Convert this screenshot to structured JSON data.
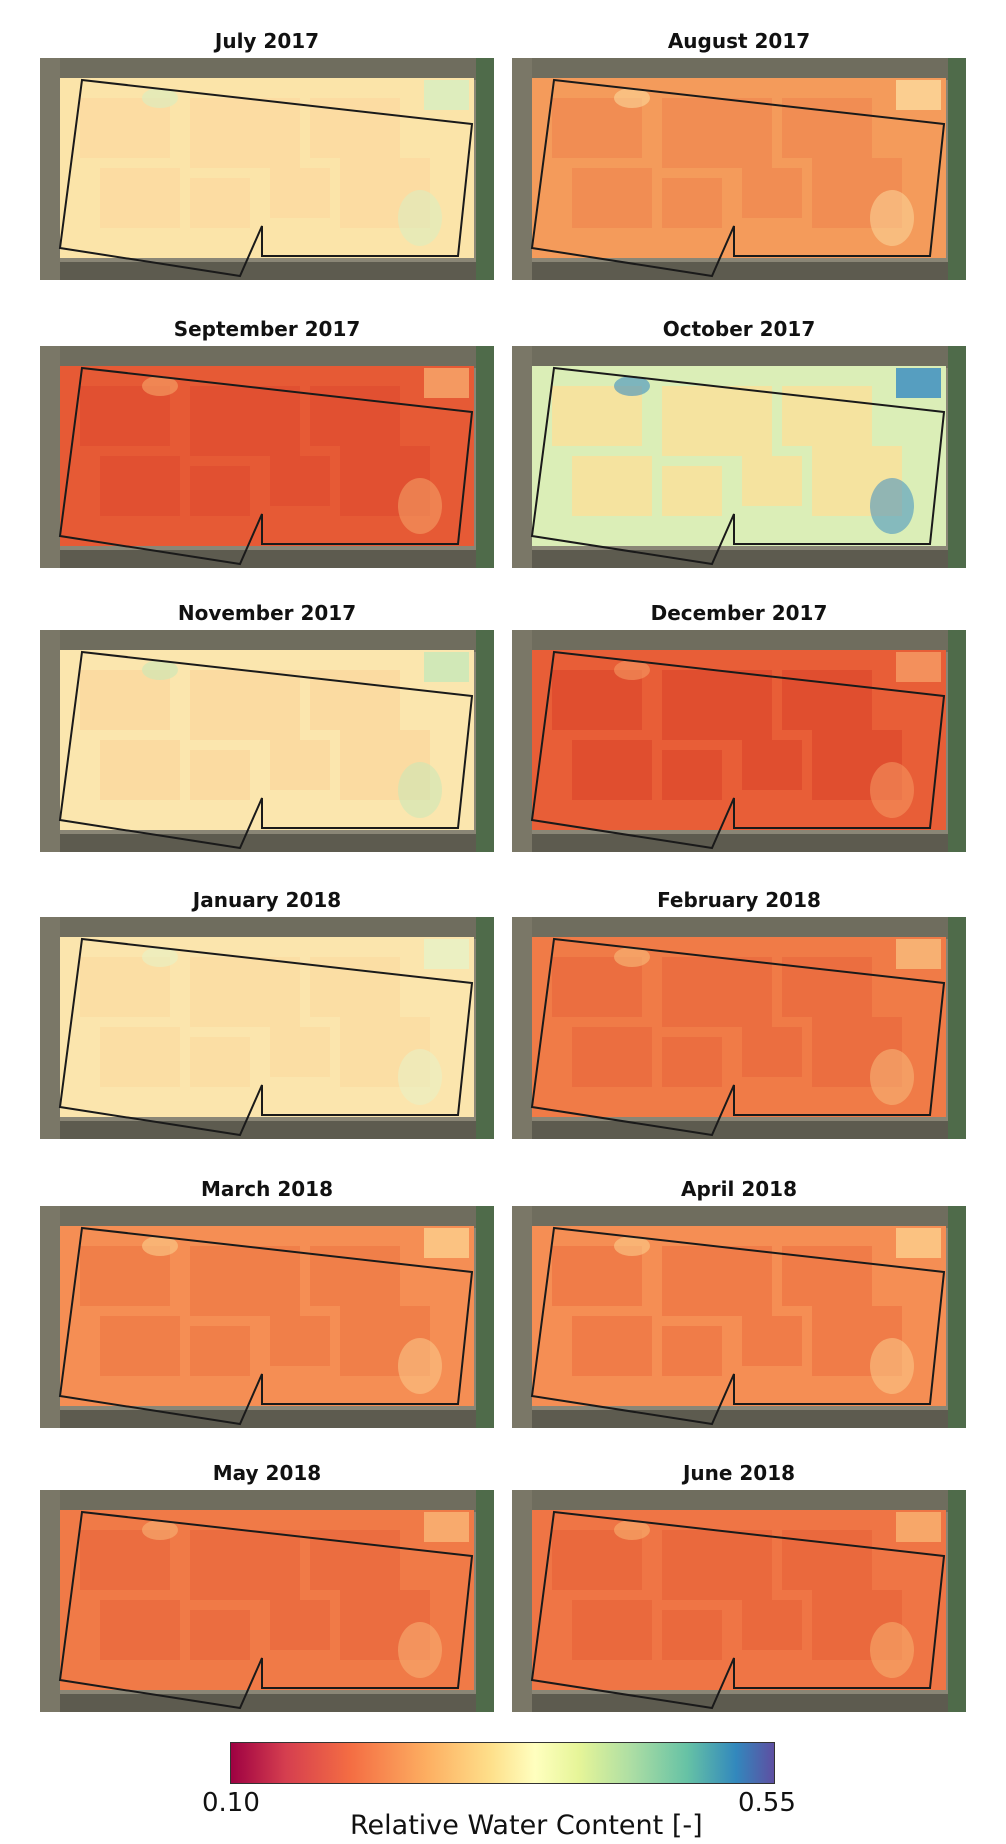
{
  "panels": [
    {
      "title": "July 2017",
      "base": "#fbe4a9",
      "variation": "#fcd9a0",
      "accent": "#d8eec1"
    },
    {
      "title": "August 2017",
      "base": "#f49b5b",
      "variation": "#f08850",
      "accent": "#fcd79a"
    },
    {
      "title": "September 2017",
      "base": "#e65a35",
      "variation": "#df4e30",
      "accent": "#f6a468"
    },
    {
      "title": "October 2017",
      "base": "#dbeeb7",
      "variation": "#fddf97",
      "accent": "#3e8fc2"
    },
    {
      "title": "November 2017",
      "base": "#fbe6ae",
      "variation": "#fbd79c",
      "accent": "#c9e8b8"
    },
    {
      "title": "December 2017",
      "base": "#e85e37",
      "variation": "#dd4a2d",
      "accent": "#f59963"
    },
    {
      "title": "January 2018",
      "base": "#fbe5ad",
      "variation": "#fbdba2",
      "accent": "#e8f2c6"
    },
    {
      "title": "February 2018",
      "base": "#f07b47",
      "variation": "#ea6a3d",
      "accent": "#f8ba7a"
    },
    {
      "title": "March 2018",
      "base": "#f58e54",
      "variation": "#ee7a45",
      "accent": "#fbcb8a"
    },
    {
      "title": "April 2018",
      "base": "#f58e54",
      "variation": "#ed7644",
      "accent": "#fbcb8a"
    },
    {
      "title": "May 2018",
      "base": "#f07a47",
      "variation": "#ea6a3e",
      "accent": "#f9b374"
    },
    {
      "title": "June 2018",
      "base": "#ef7545",
      "variation": "#e8663b",
      "accent": "#f8b070"
    }
  ],
  "legend": {
    "min": "0.10",
    "max": "0.55",
    "label": "Relative Water Content [-]"
  }
}
